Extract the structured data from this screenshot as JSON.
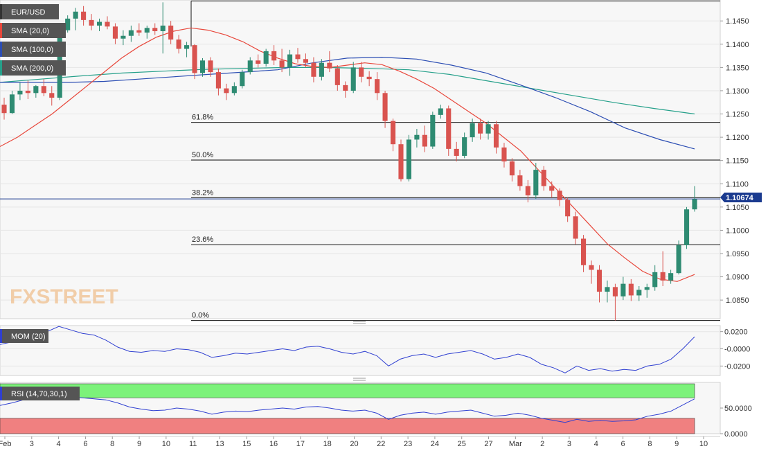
{
  "instrument": "EUR/USD",
  "watermark": "FXSTREET",
  "colors": {
    "up": "#2e8b72",
    "down": "#d9534f",
    "sma20": "#e8473b",
    "sma100": "#2b4db3",
    "sma200": "#25a08a",
    "mom": "#2f3fd1",
    "rsi": "#2f3fd1",
    "rsi_overbought": "#7cf27a",
    "rsi_oversold": "#f08080",
    "price_tag": "#1a3a8f",
    "panel_bg": "#f7f7f7",
    "grid": "#e6e6e6"
  },
  "legend": {
    "price": "EUR/USD",
    "sma20": "SMA (20,0)",
    "sma100": "SMA (100,0)",
    "sma200": "SMA (200,0)",
    "mom": "MOM (20)",
    "rsi": "RSI (14,70,30,1)"
  },
  "chart_data": [
    {
      "panel": "price",
      "type": "candlestick",
      "title": "EUR/USD",
      "timeframe": "4h",
      "y_axis_labels": [
        "1.1450",
        "1.1400",
        "1.1350",
        "1.1300",
        "1.1250",
        "1.1200",
        "1.1150",
        "1.1100",
        "1.1050",
        "1.1000",
        "1.0950",
        "1.0900",
        "1.0850"
      ],
      "x_axis_labels": [
        "Feb",
        "3",
        "4",
        "6",
        "8",
        "9",
        "10",
        "11",
        "13",
        "15",
        "16",
        "17",
        "18",
        "20",
        "22",
        "23",
        "24",
        "25",
        "27",
        "Mar",
        "2",
        "3",
        "4",
        "6",
        "8",
        "9",
        "10"
      ],
      "ylim": [
        1.081,
        1.1495
      ],
      "last_price": "1.10674",
      "last_price_value": 1.10674,
      "fibonacci": [
        {
          "label": "61.8%",
          "value": 1.1232
        },
        {
          "label": "50.0%",
          "value": 1.1151
        },
        {
          "label": "38.2%",
          "value": 1.107
        },
        {
          "label": "23.6%",
          "value": 1.0969
        },
        {
          "label": "0.0%",
          "value": 1.0806
        },
        {
          "label": "",
          "value": 1.1493
        }
      ],
      "candles": [
        {
          "date": "Feb 2",
          "o": 1.127,
          "h": 1.1285,
          "l": 1.1238,
          "c": 1.1252
        },
        {
          "date": "Feb 2",
          "o": 1.1252,
          "h": 1.13,
          "l": 1.125,
          "c": 1.1292
        },
        {
          "date": "Feb 3",
          "o": 1.1292,
          "h": 1.1318,
          "l": 1.128,
          "c": 1.13
        },
        {
          "date": "Feb 3",
          "o": 1.13,
          "h": 1.1322,
          "l": 1.1282,
          "c": 1.1295
        },
        {
          "date": "Feb 3",
          "o": 1.1295,
          "h": 1.1312,
          "l": 1.1285,
          "c": 1.131
        },
        {
          "date": "Feb 3",
          "o": 1.131,
          "h": 1.1325,
          "l": 1.1288,
          "c": 1.1295
        },
        {
          "date": "Feb 4",
          "o": 1.1295,
          "h": 1.131,
          "l": 1.1268,
          "c": 1.1285
        },
        {
          "date": "Feb 4",
          "o": 1.1285,
          "h": 1.144,
          "l": 1.128,
          "c": 1.143
        },
        {
          "date": "Feb 4",
          "o": 1.143,
          "h": 1.1462,
          "l": 1.1425,
          "c": 1.1455
        },
        {
          "date": "Feb 4",
          "o": 1.1455,
          "h": 1.1478,
          "l": 1.143,
          "c": 1.147
        },
        {
          "date": "Feb 6",
          "o": 1.147,
          "h": 1.1482,
          "l": 1.144,
          "c": 1.1452
        },
        {
          "date": "Feb 6",
          "o": 1.1452,
          "h": 1.1465,
          "l": 1.143,
          "c": 1.144
        },
        {
          "date": "Feb 6",
          "o": 1.144,
          "h": 1.1455,
          "l": 1.1428,
          "c": 1.1448
        },
        {
          "date": "Feb 6",
          "o": 1.1448,
          "h": 1.146,
          "l": 1.1432,
          "c": 1.1438
        },
        {
          "date": "Feb 8",
          "o": 1.1438,
          "h": 1.1445,
          "l": 1.14,
          "c": 1.1412
        },
        {
          "date": "Feb 8",
          "o": 1.1412,
          "h": 1.143,
          "l": 1.1398,
          "c": 1.1418
        },
        {
          "date": "Feb 8",
          "o": 1.1418,
          "h": 1.144,
          "l": 1.1405,
          "c": 1.143
        },
        {
          "date": "Feb 9",
          "o": 1.143,
          "h": 1.1445,
          "l": 1.1418,
          "c": 1.1425
        },
        {
          "date": "Feb 9",
          "o": 1.1425,
          "h": 1.144,
          "l": 1.1412,
          "c": 1.1435
        },
        {
          "date": "Feb 10",
          "o": 1.1435,
          "h": 1.1445,
          "l": 1.142,
          "c": 1.1428
        },
        {
          "date": "Feb 10",
          "o": 1.1428,
          "h": 1.149,
          "l": 1.138,
          "c": 1.144
        },
        {
          "date": "Feb 11",
          "o": 1.144,
          "h": 1.145,
          "l": 1.14,
          "c": 1.141
        },
        {
          "date": "Feb 11",
          "o": 1.141,
          "h": 1.142,
          "l": 1.138,
          "c": 1.139
        },
        {
          "date": "Feb 11",
          "o": 1.139,
          "h": 1.1405,
          "l": 1.1372,
          "c": 1.1398
        },
        {
          "date": "Feb 13",
          "o": 1.1398,
          "h": 1.14,
          "l": 1.1325,
          "c": 1.1338
        },
        {
          "date": "Feb 13",
          "o": 1.1338,
          "h": 1.137,
          "l": 1.133,
          "c": 1.1365
        },
        {
          "date": "Feb 13",
          "o": 1.1365,
          "h": 1.1372,
          "l": 1.133,
          "c": 1.134
        },
        {
          "date": "Feb 15",
          "o": 1.134,
          "h": 1.1348,
          "l": 1.129,
          "c": 1.1305
        },
        {
          "date": "Feb 15",
          "o": 1.1305,
          "h": 1.1315,
          "l": 1.128,
          "c": 1.1295
        },
        {
          "date": "Feb 15",
          "o": 1.1295,
          "h": 1.1318,
          "l": 1.129,
          "c": 1.131
        },
        {
          "date": "Feb 16",
          "o": 1.131,
          "h": 1.1345,
          "l": 1.1305,
          "c": 1.134
        },
        {
          "date": "Feb 16",
          "o": 1.134,
          "h": 1.1372,
          "l": 1.1335,
          "c": 1.1365
        },
        {
          "date": "Feb 16",
          "o": 1.1365,
          "h": 1.1378,
          "l": 1.135,
          "c": 1.1358
        },
        {
          "date": "Feb 17",
          "o": 1.1358,
          "h": 1.139,
          "l": 1.1352,
          "c": 1.1385
        },
        {
          "date": "Feb 17",
          "o": 1.1385,
          "h": 1.1398,
          "l": 1.1355,
          "c": 1.1365
        },
        {
          "date": "Feb 17",
          "o": 1.1365,
          "h": 1.139,
          "l": 1.134,
          "c": 1.135
        },
        {
          "date": "Feb 18",
          "o": 1.135,
          "h": 1.1388,
          "l": 1.1332,
          "c": 1.1378
        },
        {
          "date": "Feb 18",
          "o": 1.1378,
          "h": 1.1392,
          "l": 1.136,
          "c": 1.1368
        },
        {
          "date": "Feb 18",
          "o": 1.1368,
          "h": 1.138,
          "l": 1.135,
          "c": 1.136
        },
        {
          "date": "Feb 20",
          "o": 1.136,
          "h": 1.1372,
          "l": 1.1318,
          "c": 1.133
        },
        {
          "date": "Feb 20",
          "o": 1.133,
          "h": 1.1368,
          "l": 1.1322,
          "c": 1.136
        },
        {
          "date": "Feb 20",
          "o": 1.136,
          "h": 1.1385,
          "l": 1.134,
          "c": 1.1348
        },
        {
          "date": "Feb 22",
          "o": 1.1348,
          "h": 1.1355,
          "l": 1.13,
          "c": 1.1312
        },
        {
          "date": "Feb 22",
          "o": 1.1312,
          "h": 1.132,
          "l": 1.1285,
          "c": 1.13
        },
        {
          "date": "Feb 22",
          "o": 1.13,
          "h": 1.1362,
          "l": 1.1295,
          "c": 1.135
        },
        {
          "date": "Feb 23",
          "o": 1.135,
          "h": 1.1362,
          "l": 1.1318,
          "c": 1.133
        },
        {
          "date": "Feb 23",
          "o": 1.133,
          "h": 1.1342,
          "l": 1.131,
          "c": 1.1325
        },
        {
          "date": "Feb 23",
          "o": 1.1325,
          "h": 1.134,
          "l": 1.128,
          "c": 1.1295
        },
        {
          "date": "Feb 24",
          "o": 1.1295,
          "h": 1.13,
          "l": 1.122,
          "c": 1.1235
        },
        {
          "date": "Feb 24",
          "o": 1.1235,
          "h": 1.124,
          "l": 1.117,
          "c": 1.1185
        },
        {
          "date": "Feb 24",
          "o": 1.1185,
          "h": 1.1195,
          "l": 1.1105,
          "c": 1.111
        },
        {
          "date": "Feb 25",
          "o": 1.111,
          "h": 1.1205,
          "l": 1.1105,
          "c": 1.1195
        },
        {
          "date": "Feb 25",
          "o": 1.1195,
          "h": 1.1218,
          "l": 1.1178,
          "c": 1.1205
        },
        {
          "date": "Feb 25",
          "o": 1.1205,
          "h": 1.1225,
          "l": 1.1168,
          "c": 1.118
        },
        {
          "date": "Feb 26",
          "o": 1.118,
          "h": 1.1255,
          "l": 1.1175,
          "c": 1.1248
        },
        {
          "date": "Feb 26",
          "o": 1.1248,
          "h": 1.127,
          "l": 1.124,
          "c": 1.1262
        },
        {
          "date": "Feb 27",
          "o": 1.1262,
          "h": 1.1268,
          "l": 1.116,
          "c": 1.1175
        },
        {
          "date": "Feb 27",
          "o": 1.1175,
          "h": 1.119,
          "l": 1.1148,
          "c": 1.116
        },
        {
          "date": "Feb 27",
          "o": 1.116,
          "h": 1.121,
          "l": 1.1155,
          "c": 1.12
        },
        {
          "date": "Feb 28",
          "o": 1.12,
          "h": 1.124,
          "l": 1.119,
          "c": 1.123
        },
        {
          "date": "Feb 28",
          "o": 1.123,
          "h": 1.124,
          "l": 1.1195,
          "c": 1.1208
        },
        {
          "date": "Mar 1",
          "o": 1.1208,
          "h": 1.1235,
          "l": 1.1195,
          "c": 1.1228
        },
        {
          "date": "Mar 1",
          "o": 1.1228,
          "h": 1.1235,
          "l": 1.1165,
          "c": 1.1178
        },
        {
          "date": "Mar 1",
          "o": 1.1178,
          "h": 1.1188,
          "l": 1.1135,
          "c": 1.1148
        },
        {
          "date": "Mar 2",
          "o": 1.1148,
          "h": 1.1155,
          "l": 1.1105,
          "c": 1.1118
        },
        {
          "date": "Mar 2",
          "o": 1.1118,
          "h": 1.113,
          "l": 1.1085,
          "c": 1.1095
        },
        {
          "date": "Mar 2",
          "o": 1.1095,
          "h": 1.1108,
          "l": 1.106,
          "c": 1.1075
        },
        {
          "date": "Mar 3",
          "o": 1.1075,
          "h": 1.1145,
          "l": 1.1068,
          "c": 1.113
        },
        {
          "date": "Mar 3",
          "o": 1.113,
          "h": 1.1138,
          "l": 1.1085,
          "c": 1.1095
        },
        {
          "date": "Mar 3",
          "o": 1.1095,
          "h": 1.1105,
          "l": 1.107,
          "c": 1.1085
        },
        {
          "date": "Mar 4",
          "o": 1.1085,
          "h": 1.109,
          "l": 1.1052,
          "c": 1.1065
        },
        {
          "date": "Mar 4",
          "o": 1.1065,
          "h": 1.107,
          "l": 1.1018,
          "c": 1.103
        },
        {
          "date": "Mar 4",
          "o": 1.103,
          "h": 1.104,
          "l": 1.097,
          "c": 1.0982
        },
        {
          "date": "Mar 5",
          "o": 1.0982,
          "h": 1.099,
          "l": 1.091,
          "c": 1.0925
        },
        {
          "date": "Mar 5",
          "o": 1.0925,
          "h": 1.0935,
          "l": 1.0885,
          "c": 1.0915
        },
        {
          "date": "Mar 6",
          "o": 1.0915,
          "h": 1.0925,
          "l": 1.0845,
          "c": 1.0868
        },
        {
          "date": "Mar 6",
          "o": 1.0868,
          "h": 1.0892,
          "l": 1.0845,
          "c": 1.0878
        },
        {
          "date": "Mar 6",
          "o": 1.0878,
          "h": 1.0885,
          "l": 1.0806,
          "c": 1.0858
        },
        {
          "date": "Mar 7",
          "o": 1.0858,
          "h": 1.09,
          "l": 1.085,
          "c": 1.0885
        },
        {
          "date": "Mar 7",
          "o": 1.0885,
          "h": 1.0895,
          "l": 1.0848,
          "c": 1.086
        },
        {
          "date": "Mar 7",
          "o": 1.086,
          "h": 1.088,
          "l": 1.0848,
          "c": 1.0872
        },
        {
          "date": "Mar 8",
          "o": 1.0872,
          "h": 1.0885,
          "l": 1.0855,
          "c": 1.0878
        },
        {
          "date": "Mar 8",
          "o": 1.0878,
          "h": 1.0925,
          "l": 1.087,
          "c": 1.091
        },
        {
          "date": "Mar 8",
          "o": 1.091,
          "h": 1.0955,
          "l": 1.088,
          "c": 1.0892
        },
        {
          "date": "Mar 9",
          "o": 1.0892,
          "h": 1.0915,
          "l": 1.0885,
          "c": 1.0908
        },
        {
          "date": "Mar 9",
          "o": 1.0908,
          "h": 1.0978,
          "l": 1.0905,
          "c": 1.0968
        },
        {
          "date": "Mar 9",
          "o": 1.0968,
          "h": 1.105,
          "l": 1.096,
          "c": 1.1045
        },
        {
          "date": "Mar 9",
          "o": 1.1045,
          "h": 1.1095,
          "l": 1.104,
          "c": 1.1067
        }
      ],
      "sma20": [
        1.118,
        1.12,
        1.1225,
        1.125,
        1.128,
        1.131,
        1.134,
        1.137,
        1.1395,
        1.1415,
        1.1428,
        1.1435,
        1.143,
        1.142,
        1.1405,
        1.1385,
        1.137,
        1.1358,
        1.1352,
        1.135,
        1.1355,
        1.136,
        1.1356,
        1.1342,
        1.1325,
        1.1305,
        1.128,
        1.1255,
        1.123,
        1.12,
        1.117,
        1.113,
        1.109,
        1.105,
        1.101,
        1.097,
        1.094,
        1.0912,
        1.0895,
        1.089,
        1.0905
      ],
      "sma100": [
        1.1318,
        1.1318,
        1.1318,
        1.132,
        1.1325,
        1.133,
        1.1335,
        1.134,
        1.1345,
        1.136,
        1.137,
        1.1372,
        1.1368,
        1.1355,
        1.1338,
        1.1312,
        1.1285,
        1.1255,
        1.122,
        1.1195,
        1.1175
      ],
      "sma200": [
        1.1318,
        1.1325,
        1.1332,
        1.1338,
        1.1342,
        1.1346,
        1.1348,
        1.135,
        1.135,
        1.1348,
        1.1345,
        1.1335,
        1.132,
        1.1305,
        1.129,
        1.1275,
        1.1262,
        1.125
      ]
    },
    {
      "panel": "momentum",
      "type": "line",
      "title": "MOM (20)",
      "y_axis_labels": [
        "0.0200",
        "-0.0000",
        "-0.0200"
      ],
      "ylim": [
        -0.031,
        0.027
      ],
      "values": [
        0.005,
        0.008,
        0.01,
        0.014,
        0.02,
        0.026,
        0.022,
        0.018,
        0.016,
        0.01,
        0.002,
        -0.003,
        -0.004,
        -0.002,
        -0.003,
        0.0,
        -0.001,
        -0.004,
        -0.01,
        -0.008,
        -0.005,
        -0.006,
        -0.004,
        -0.002,
        0.0,
        -0.002,
        0.002,
        0.003,
        0.0,
        -0.004,
        -0.006,
        -0.003,
        -0.008,
        -0.02,
        -0.012,
        -0.008,
        -0.006,
        -0.01,
        -0.006,
        -0.004,
        -0.002,
        -0.006,
        -0.012,
        -0.01,
        -0.006,
        -0.01,
        -0.018,
        -0.022,
        -0.028,
        -0.02,
        -0.025,
        -0.023,
        -0.026,
        -0.024,
        -0.025,
        -0.02,
        -0.018,
        -0.012,
        0.0,
        0.014
      ]
    },
    {
      "panel": "rsi",
      "type": "line",
      "title": "RSI (14,70,30,1)",
      "y_axis_labels": [
        "50.0000",
        "0.0000"
      ],
      "ylim": [
        0,
        100
      ],
      "overbought": 70,
      "oversold": 30,
      "values": [
        55,
        60,
        66,
        72,
        76,
        74,
        72,
        70,
        68,
        66,
        60,
        52,
        48,
        45,
        46,
        50,
        48,
        44,
        38,
        42,
        44,
        43,
        46,
        48,
        50,
        48,
        52,
        53,
        50,
        46,
        44,
        46,
        40,
        28,
        36,
        40,
        42,
        38,
        42,
        44,
        46,
        40,
        34,
        36,
        40,
        36,
        30,
        26,
        22,
        28,
        24,
        26,
        24,
        25,
        27,
        34,
        38,
        44,
        56,
        68
      ]
    }
  ]
}
